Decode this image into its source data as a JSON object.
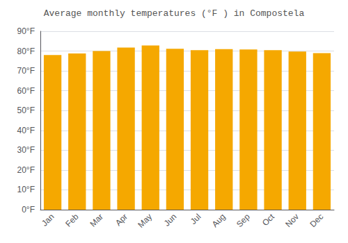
{
  "chart_data": {
    "type": "bar",
    "title": "Average monthly temperatures (°F ) in Compostela",
    "categories": [
      "Jan",
      "Feb",
      "Mar",
      "Apr",
      "May",
      "Jun",
      "Jul",
      "Aug",
      "Sep",
      "Oct",
      "Nov",
      "Dec"
    ],
    "values": [
      78.0,
      78.8,
      80.0,
      81.8,
      82.8,
      81.2,
      80.5,
      81.0,
      80.8,
      80.5,
      79.8,
      79.0
    ],
    "color": "#F5A800",
    "ylim": [
      0,
      90
    ],
    "yticks": [
      {
        "value": 0,
        "label": "0°F"
      },
      {
        "value": 10,
        "label": "10°F"
      },
      {
        "value": 20,
        "label": "20°F"
      },
      {
        "value": 30,
        "label": "30°F"
      },
      {
        "value": 40,
        "label": "40°F"
      },
      {
        "value": 50,
        "label": "50°F"
      },
      {
        "value": 60,
        "label": "60°F"
      },
      {
        "value": 70,
        "label": "70°F"
      },
      {
        "value": 80,
        "label": "80°F"
      },
      {
        "value": 90,
        "label": "90°F"
      }
    ],
    "grid": true
  }
}
